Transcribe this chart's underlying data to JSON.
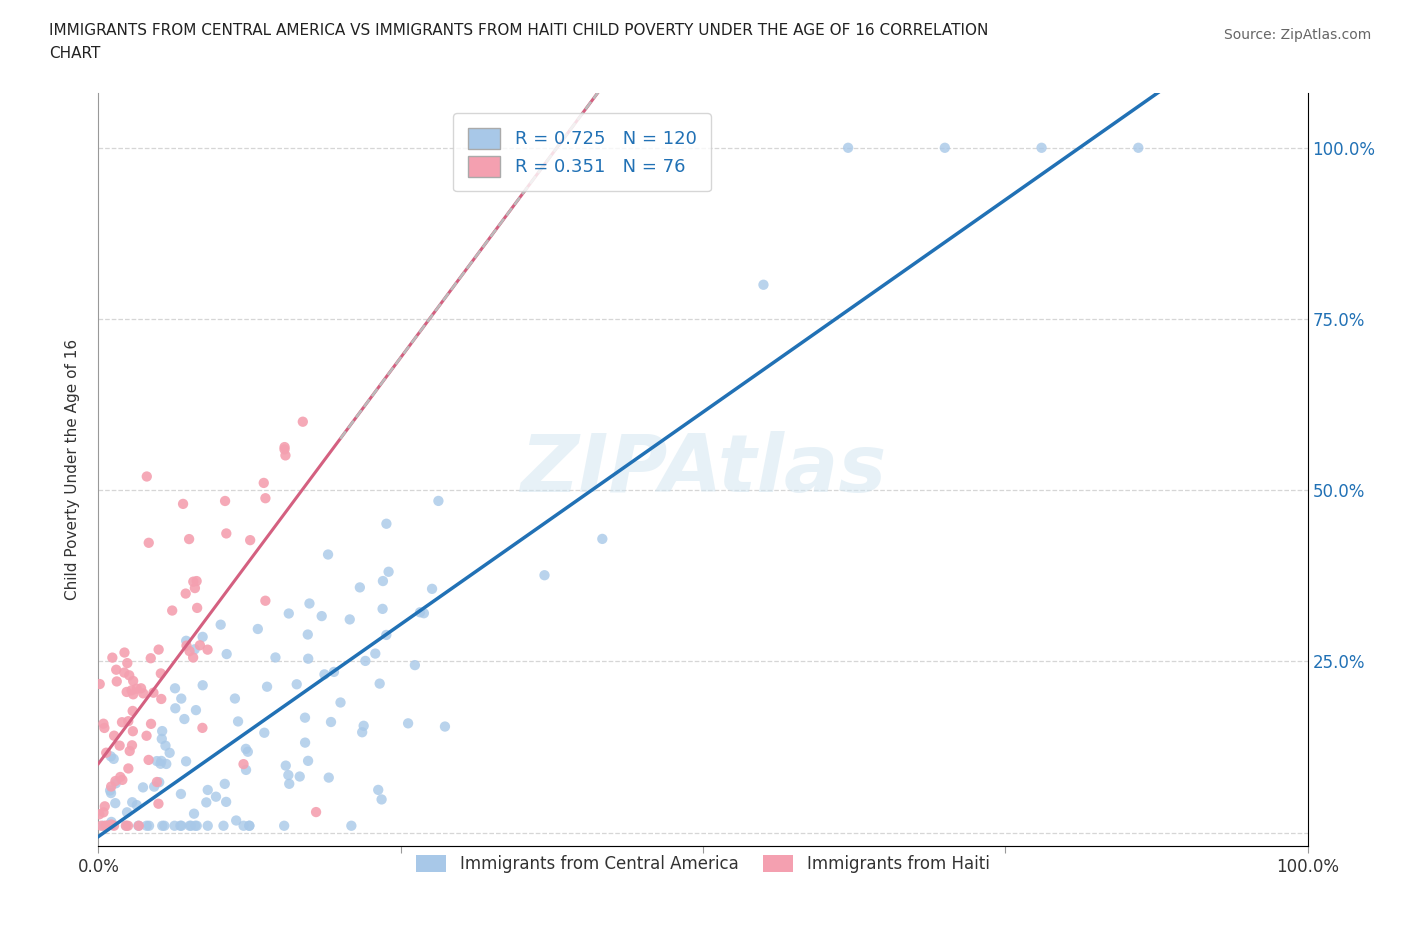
{
  "title_line1": "IMMIGRANTS FROM CENTRAL AMERICA VS IMMIGRANTS FROM HAITI CHILD POVERTY UNDER THE AGE OF 16 CORRELATION",
  "title_line2": "CHART",
  "source_text": "Source: ZipAtlas.com",
  "ylabel": "Child Poverty Under the Age of 16",
  "watermark": "ZIPAtlas",
  "blue_R": 0.725,
  "blue_N": 120,
  "pink_R": 0.351,
  "pink_N": 76,
  "blue_color": "#a8c8e8",
  "blue_line_color": "#2171b5",
  "pink_color": "#f4a0b0",
  "pink_line_color": "#d46080",
  "legend_label_blue": "Immigrants from Central America",
  "legend_label_pink": "Immigrants from Haiti",
  "xlim": [
    0.0,
    1.0
  ],
  "ylim": [
    -0.02,
    1.08
  ],
  "x_tick_left": "0.0%",
  "x_tick_right": "100.0%",
  "y_ticks": [
    0.0,
    0.25,
    0.5,
    0.75,
    1.0
  ],
  "y_tick_labels_right": [
    "",
    "25.0%",
    "50.0%",
    "75.0%",
    "100.0%"
  ]
}
